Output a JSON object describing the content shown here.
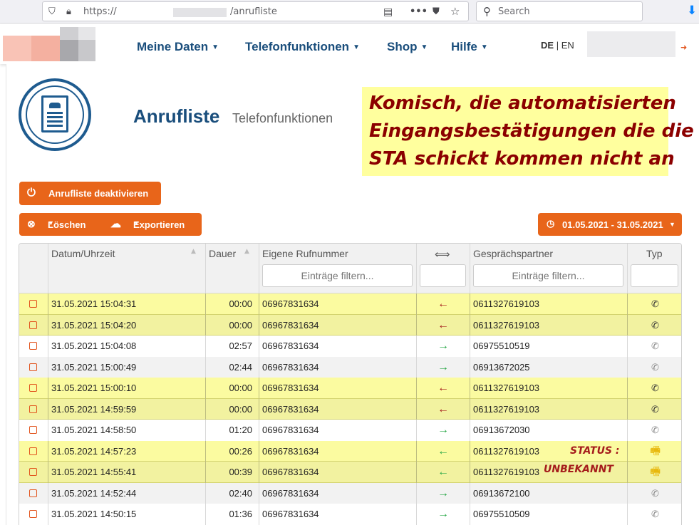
{
  "browser": {
    "url_scheme": "https://",
    "url_path": "/anrufliste",
    "search_placeholder": "Search"
  },
  "header": {
    "nav": [
      {
        "label": "Meine Daten"
      },
      {
        "label": "Telefonfunktionen"
      },
      {
        "label": "Shop"
      },
      {
        "label": "Hilfe"
      }
    ],
    "lang_de": "DE",
    "lang_sep": "|",
    "lang_en": "EN"
  },
  "page": {
    "title": "Anrufliste",
    "subtitle": "Telefonfunktionen"
  },
  "annotation": {
    "line1": "Komisch, die automatisierten",
    "line2": "Eingangsbestätigungen die die",
    "line3": "STA schickt kommen nicht an",
    "status_line1": "STATUS :",
    "status_line2": "UNBEKANNT"
  },
  "toolbar": {
    "deactivate_label": "Anrufliste deaktivieren",
    "delete_label": "Löschen",
    "export_label": "Exportieren",
    "date_range_label": "01.05.2021 - 31.05.2021"
  },
  "table": {
    "headers": {
      "datetime": "Datum/Uhrzeit",
      "duration": "Dauer",
      "own_number": "Eigene Rufnummer",
      "direction": "⟺",
      "partner": "Gesprächspartner",
      "type": "Typ"
    },
    "filter_placeholder": "Einträge filtern...",
    "rows": [
      {
        "datetime": "31.05.2021 15:04:31",
        "duration": "00:00",
        "own": "06967831634",
        "dir": "←",
        "dir_kind": "in",
        "partner": "0611327619103",
        "type": "phone",
        "highlight": true
      },
      {
        "datetime": "31.05.2021 15:04:20",
        "duration": "00:00",
        "own": "06967831634",
        "dir": "←",
        "dir_kind": "in",
        "partner": "0611327619103",
        "type": "phone",
        "highlight": true
      },
      {
        "datetime": "31.05.2021 15:04:08",
        "duration": "02:57",
        "own": "06967831634",
        "dir": "→",
        "dir_kind": "out",
        "partner": "06975510519",
        "type": "phone",
        "highlight": false
      },
      {
        "datetime": "31.05.2021 15:00:49",
        "duration": "02:44",
        "own": "06967831634",
        "dir": "→",
        "dir_kind": "out",
        "partner": "06913672025",
        "type": "phone",
        "highlight": false
      },
      {
        "datetime": "31.05.2021 15:00:10",
        "duration": "00:00",
        "own": "06967831634",
        "dir": "←",
        "dir_kind": "in",
        "partner": "0611327619103",
        "type": "phone",
        "highlight": true
      },
      {
        "datetime": "31.05.2021 14:59:59",
        "duration": "00:00",
        "own": "06967831634",
        "dir": "←",
        "dir_kind": "in",
        "partner": "0611327619103",
        "type": "phone",
        "highlight": true
      },
      {
        "datetime": "31.05.2021 14:58:50",
        "duration": "01:20",
        "own": "06967831634",
        "dir": "→",
        "dir_kind": "out",
        "partner": "06913672030",
        "type": "phone",
        "highlight": false
      },
      {
        "datetime": "31.05.2021 14:57:23",
        "duration": "00:26",
        "own": "06967831634",
        "dir": "←",
        "dir_kind": "in-green",
        "partner": "0611327619103",
        "type": "fax",
        "highlight": true
      },
      {
        "datetime": "31.05.2021 14:55:41",
        "duration": "00:39",
        "own": "06967831634",
        "dir": "←",
        "dir_kind": "in-green",
        "partner": "0611327619103",
        "type": "fax",
        "highlight": true
      },
      {
        "datetime": "31.05.2021 14:52:44",
        "duration": "02:40",
        "own": "06967831634",
        "dir": "→",
        "dir_kind": "out",
        "partner": "06913672100",
        "type": "phone",
        "highlight": false
      },
      {
        "datetime": "31.05.2021 14:50:15",
        "duration": "01:36",
        "own": "06967831634",
        "dir": "→",
        "dir_kind": "out",
        "partner": "06975510509",
        "type": "phone",
        "highlight": false
      }
    ]
  }
}
